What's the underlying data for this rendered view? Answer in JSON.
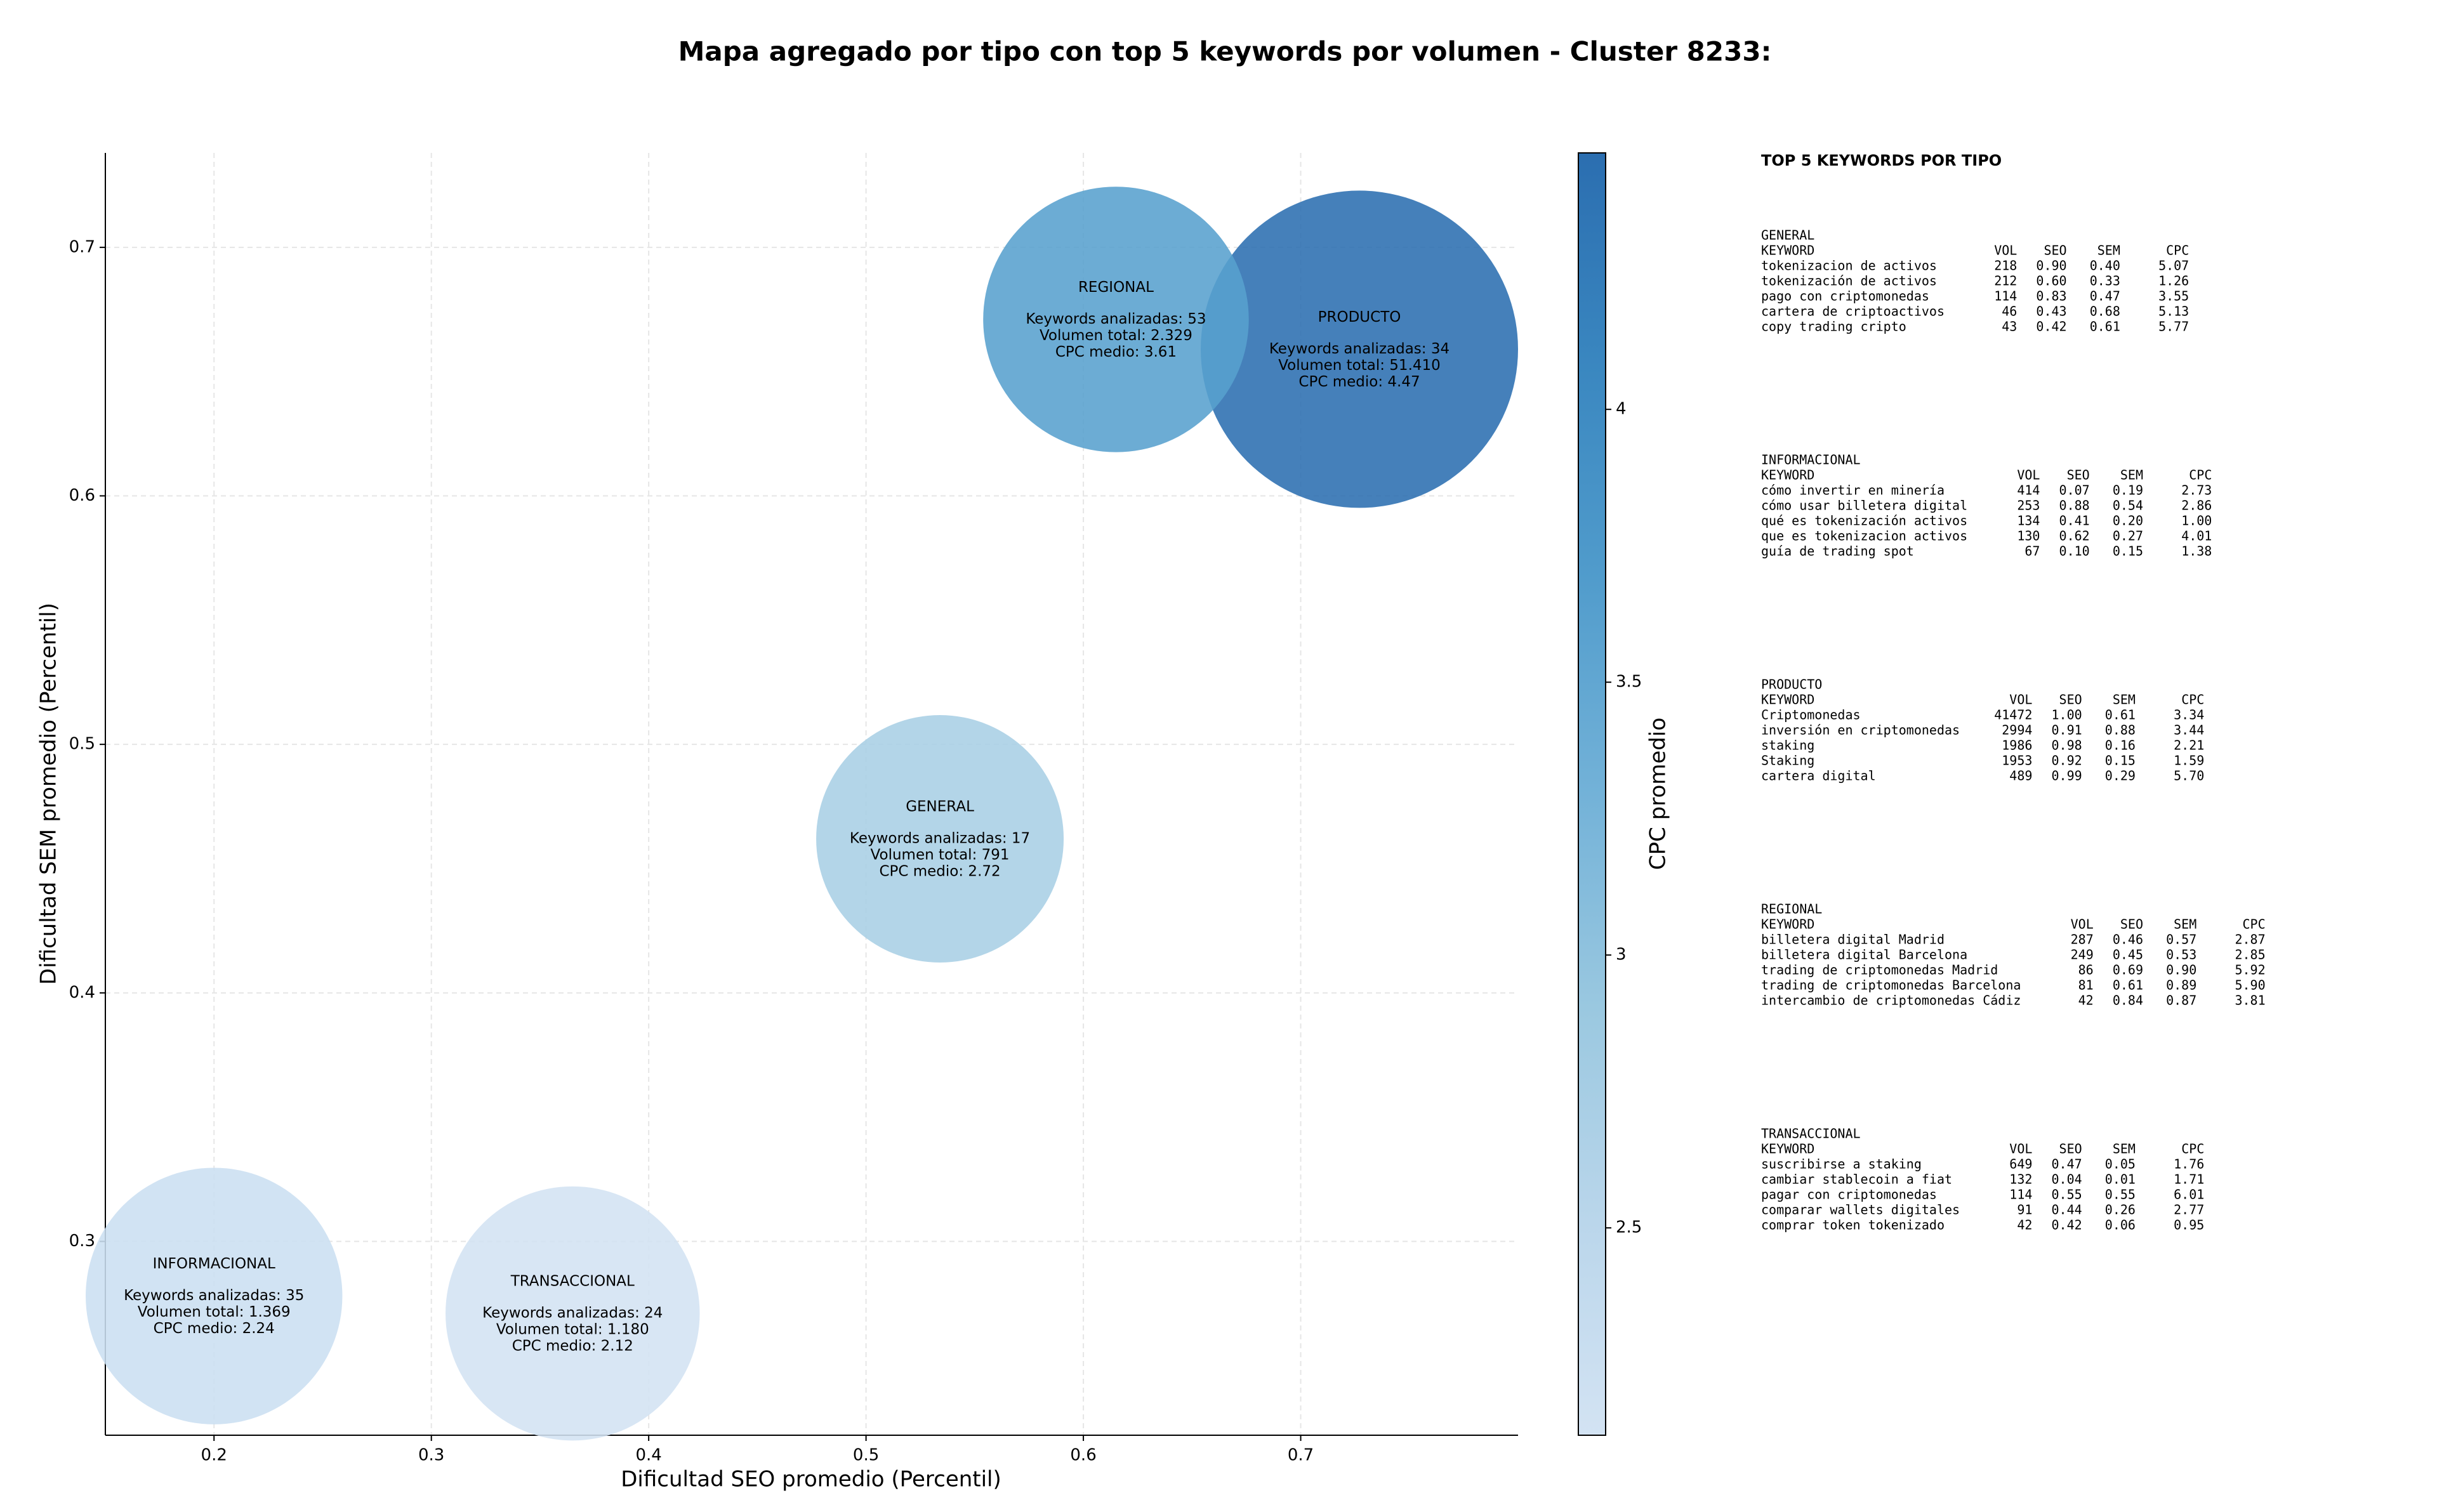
{
  "chart_data": {
    "type": "scatter",
    "title": "Mapa agregado por tipo con top 5 keywords por volumen - Cluster 8233:",
    "xlabel": "Dificultad SEO promedio (Percentil)",
    "ylabel": "Dificultad SEM promedio (Percentil)",
    "xlim": [
      0.15,
      0.8
    ],
    "ylim": [
      0.222,
      0.738
    ],
    "xticks": [
      0.2,
      0.3,
      0.4,
      0.5,
      0.6,
      0.7
    ],
    "yticks": [
      0.3,
      0.4,
      0.5,
      0.6,
      0.7
    ],
    "grid": true,
    "colormap": "Blues",
    "labels": [
      "GENERAL",
      "INFORMACIONAL",
      "PRODUCTO",
      "REGIONAL",
      "TRANSACCIONAL"
    ],
    "x": [
      0.534,
      0.2,
      0.727,
      0.615,
      0.365
    ],
    "values": [
      0.462,
      0.278,
      0.659,
      0.671,
      0.271
    ],
    "sizes": [
      791,
      1369,
      51410,
      2329,
      1180
    ],
    "cpc": [
      2.72,
      2.24,
      4.47,
      3.61,
      2.12
    ],
    "annotations": [
      [
        "Keywords analizadas: 17",
        "Volumen total: 791",
        "CPC medio: 2.72"
      ],
      [
        "Keywords analizadas: 35",
        "Volumen total: 1.369",
        "CPC medio: 2.24"
      ],
      [
        "Keywords analizadas: 34",
        "Volumen total: 51.410",
        "CPC medio: 4.47"
      ],
      [
        "Keywords analizadas: 53",
        "Volumen total: 2.329",
        "CPC medio: 3.61"
      ],
      [
        "Keywords analizadas: 24",
        "Volumen total: 1.180",
        "CPC medio: 2.12"
      ]
    ],
    "colorbar": {
      "label": "CPC promedio",
      "lim": [
        2.12,
        4.47
      ],
      "ticks": [
        2.5,
        3.0,
        3.5,
        4.0
      ]
    },
    "panel": {
      "title": "TOP 5 KEYWORDS POR TIPO",
      "header": [
        "KEYWORD",
        "VOL",
        "SEO",
        "SEM",
        "CPC"
      ],
      "sections": [
        {
          "name": "GENERAL",
          "rows": [
            [
              "tokenizacion de activos",
              "218",
              "0.90",
              "0.40",
              "5.07"
            ],
            [
              "tokenización de activos",
              "212",
              "0.60",
              "0.33",
              "1.26"
            ],
            [
              "pago con criptomonedas",
              "114",
              "0.83",
              "0.47",
              "3.55"
            ],
            [
              "cartera de criptoactivos",
              "46",
              "0.43",
              "0.68",
              "5.13"
            ],
            [
              "copy trading cripto",
              "43",
              "0.42",
              "0.61",
              "5.77"
            ]
          ]
        },
        {
          "name": "INFORMACIONAL",
          "rows": [
            [
              "cómo invertir en minería",
              "414",
              "0.07",
              "0.19",
              "2.73"
            ],
            [
              "cómo usar billetera digital",
              "253",
              "0.88",
              "0.54",
              "2.86"
            ],
            [
              "qué es tokenización activos",
              "134",
              "0.41",
              "0.20",
              "1.00"
            ],
            [
              "que es tokenizacion activos",
              "130",
              "0.62",
              "0.27",
              "4.01"
            ],
            [
              "guía de trading spot",
              "67",
              "0.10",
              "0.15",
              "1.38"
            ]
          ]
        },
        {
          "name": "PRODUCTO",
          "rows": [
            [
              "Criptomonedas",
              "41472",
              "1.00",
              "0.61",
              "3.34"
            ],
            [
              "inversión en criptomonedas",
              "2994",
              "0.91",
              "0.88",
              "3.44"
            ],
            [
              "staking",
              "1986",
              "0.98",
              "0.16",
              "2.21"
            ],
            [
              "Staking",
              "1953",
              "0.92",
              "0.15",
              "1.59"
            ],
            [
              "cartera digital",
              "489",
              "0.99",
              "0.29",
              "5.70"
            ]
          ]
        },
        {
          "name": "REGIONAL",
          "rows": [
            [
              "billetera digital Madrid",
              "287",
              "0.46",
              "0.57",
              "2.87"
            ],
            [
              "billetera digital Barcelona",
              "249",
              "0.45",
              "0.53",
              "2.85"
            ],
            [
              "trading de criptomonedas Madrid",
              "86",
              "0.69",
              "0.90",
              "5.92"
            ],
            [
              "trading de criptomonedas Barcelona",
              "81",
              "0.61",
              "0.89",
              "5.90"
            ],
            [
              "intercambio de criptomonedas Cádiz",
              "42",
              "0.84",
              "0.87",
              "3.81"
            ]
          ]
        },
        {
          "name": "TRANSACCIONAL",
          "rows": [
            [
              "suscribirse a staking",
              "649",
              "0.47",
              "0.05",
              "1.76"
            ],
            [
              "cambiar stablecoin a fiat",
              "132",
              "0.04",
              "0.01",
              "1.71"
            ],
            [
              "pagar con criptomonedas",
              "114",
              "0.55",
              "0.55",
              "6.01"
            ],
            [
              "comparar wallets digitales",
              "91",
              "0.44",
              "0.26",
              "2.77"
            ],
            [
              "comprar token tokenizado",
              "42",
              "0.42",
              "0.06",
              "0.95"
            ]
          ]
        }
      ]
    }
  }
}
